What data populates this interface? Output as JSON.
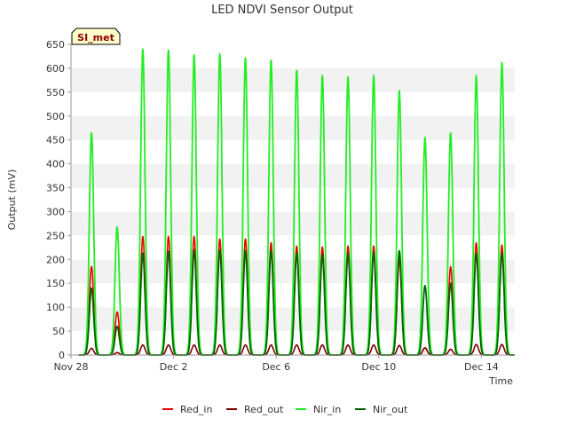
{
  "chart_data": {
    "type": "line",
    "title": "LED NDVI Sensor Output",
    "xlabel": "Time",
    "ylabel": "Output (mV)",
    "site_label": "SI_met",
    "ylim": [
      0,
      650
    ],
    "xlim": [
      0,
      17.3
    ],
    "y_ticks": [
      0,
      50,
      100,
      150,
      200,
      250,
      300,
      350,
      400,
      450,
      500,
      550,
      600,
      650
    ],
    "x_ticks": [
      {
        "label": "Nov 28",
        "day": 0
      },
      {
        "label": "Dec 2",
        "day": 4
      },
      {
        "label": "Dec 6",
        "day": 8
      },
      {
        "label": "Dec 10",
        "day": 12
      },
      {
        "label": "Dec 14",
        "day": 16
      }
    ],
    "grid": "horizontal bands",
    "legend_position": "bottom",
    "days": [
      0.8,
      1.8,
      2.8,
      3.8,
      4.8,
      5.8,
      6.8,
      7.8,
      8.8,
      9.8,
      10.8,
      11.8,
      12.8,
      13.8,
      14.8,
      15.8,
      16.8
    ],
    "series": [
      {
        "name": "Red_in",
        "color": "#ee0000",
        "width": 1.6,
        "peaks": [
          185,
          90,
          248,
          248,
          248,
          243,
          243,
          235,
          228,
          226,
          228,
          228,
          200,
          15,
          185,
          235,
          230
        ]
      },
      {
        "name": "Red_out",
        "color": "#7a0000",
        "width": 1.6,
        "peaks": [
          14,
          5,
          21,
          21,
          21,
          21,
          21,
          21,
          21,
          21,
          21,
          21,
          20,
          15,
          12,
          22,
          22
        ]
      },
      {
        "name": "Nir_in",
        "color": "#22ee22",
        "width": 1.8,
        "peaks": [
          465,
          268,
          640,
          638,
          628,
          630,
          622,
          617,
          596,
          585,
          582,
          585,
          553,
          455,
          465,
          585,
          612
        ]
      },
      {
        "name": "Nir_out",
        "color": "#006400",
        "width": 1.8,
        "peaks": [
          140,
          60,
          213,
          217,
          220,
          220,
          218,
          218,
          213,
          210,
          212,
          215,
          218,
          145,
          150,
          213,
          213
        ]
      }
    ]
  }
}
